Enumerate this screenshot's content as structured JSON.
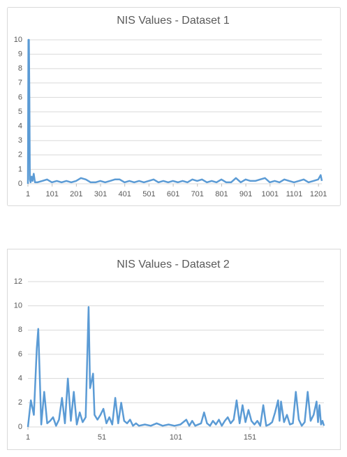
{
  "chart_data": [
    {
      "type": "line",
      "title": "NIS Values - Dataset 1",
      "color": "#5b9bd5",
      "xlim": [
        1,
        1215
      ],
      "xticks": [
        1,
        101,
        201,
        301,
        401,
        501,
        601,
        701,
        801,
        901,
        1001,
        1101,
        1201
      ],
      "ylim": [
        0,
        10
      ],
      "yticks": [
        0,
        1,
        2,
        3,
        4,
        5,
        6,
        7,
        8,
        9,
        10
      ],
      "grid": true,
      "x": [
        1,
        3,
        5,
        7,
        9,
        12,
        16,
        20,
        25,
        30,
        40,
        60,
        80,
        100,
        120,
        140,
        160,
        180,
        200,
        220,
        240,
        260,
        280,
        300,
        320,
        340,
        360,
        380,
        400,
        420,
        440,
        460,
        480,
        500,
        520,
        540,
        560,
        580,
        600,
        620,
        640,
        660,
        680,
        700,
        720,
        740,
        760,
        780,
        800,
        820,
        840,
        860,
        880,
        900,
        920,
        940,
        960,
        980,
        1000,
        1020,
        1040,
        1060,
        1080,
        1100,
        1120,
        1140,
        1160,
        1180,
        1200,
        1210,
        1215
      ],
      "values": [
        0,
        10,
        10,
        6,
        0.3,
        0.1,
        0.5,
        0.2,
        0.7,
        0.1,
        0.1,
        0.2,
        0.3,
        0.1,
        0.2,
        0.1,
        0.2,
        0.1,
        0.2,
        0.4,
        0.3,
        0.1,
        0.1,
        0.2,
        0.1,
        0.2,
        0.3,
        0.3,
        0.1,
        0.2,
        0.1,
        0.2,
        0.1,
        0.2,
        0.3,
        0.1,
        0.2,
        0.1,
        0.2,
        0.1,
        0.2,
        0.1,
        0.3,
        0.2,
        0.3,
        0.1,
        0.2,
        0.1,
        0.3,
        0.1,
        0.1,
        0.4,
        0.1,
        0.3,
        0.2,
        0.2,
        0.3,
        0.4,
        0.1,
        0.2,
        0.1,
        0.3,
        0.2,
        0.1,
        0.2,
        0.3,
        0.1,
        0.2,
        0.3,
        0.6,
        0.2
      ]
    },
    {
      "type": "line",
      "title": "NIS Values - Dataset 2",
      "color": "#5b9bd5",
      "xlim": [
        1,
        201
      ],
      "xticks": [
        1,
        51,
        101,
        151
      ],
      "ylim": [
        0,
        12
      ],
      "yticks": [
        0,
        2,
        4,
        6,
        8,
        10,
        12
      ],
      "grid": true,
      "x": [
        1,
        3,
        5,
        7,
        8,
        10,
        12,
        14,
        16,
        18,
        20,
        22,
        24,
        26,
        28,
        30,
        32,
        34,
        36,
        38,
        40,
        42,
        43,
        45,
        46,
        48,
        50,
        52,
        54,
        56,
        58,
        60,
        62,
        64,
        66,
        68,
        70,
        72,
        74,
        76,
        80,
        84,
        88,
        92,
        96,
        100,
        104,
        108,
        110,
        112,
        114,
        118,
        120,
        122,
        124,
        126,
        128,
        130,
        132,
        134,
        136,
        138,
        140,
        142,
        144,
        146,
        148,
        150,
        152,
        154,
        156,
        158,
        160,
        162,
        164,
        166,
        168,
        170,
        171,
        172,
        174,
        176,
        178,
        180,
        182,
        184,
        186,
        188,
        190,
        192,
        194,
        196,
        197,
        198,
        199,
        200,
        201
      ],
      "values": [
        0,
        2.2,
        1.0,
        6.5,
        8.1,
        0.2,
        2.9,
        0.3,
        0.5,
        0.8,
        0.1,
        0.6,
        2.4,
        0.3,
        4.0,
        0.5,
        2.9,
        0.2,
        1.2,
        0.4,
        0.8,
        9.9,
        3.2,
        4.4,
        1.0,
        0.6,
        1.0,
        1.5,
        0.3,
        0.8,
        0.2,
        2.4,
        0.3,
        2.0,
        0.5,
        0.3,
        0.6,
        0.1,
        0.3,
        0.1,
        0.2,
        0.1,
        0.3,
        0.1,
        0.2,
        0.1,
        0.2,
        0.6,
        0.1,
        0.5,
        0.1,
        0.3,
        1.2,
        0.3,
        0.1,
        0.5,
        0.2,
        0.6,
        0.1,
        0.5,
        0.8,
        0.3,
        0.6,
        2.2,
        0.3,
        1.8,
        0.4,
        1.4,
        0.5,
        0.2,
        0.5,
        0.1,
        1.8,
        0.1,
        0.2,
        0.4,
        1.2,
        2.2,
        0.5,
        2.1,
        0.4,
        1.0,
        0.2,
        0.3,
        2.9,
        0.6,
        0.1,
        0.4,
        2.9,
        0.5,
        1.0,
        2.1,
        0.4,
        1.8,
        0.2,
        0.5,
        0.1
      ]
    }
  ]
}
